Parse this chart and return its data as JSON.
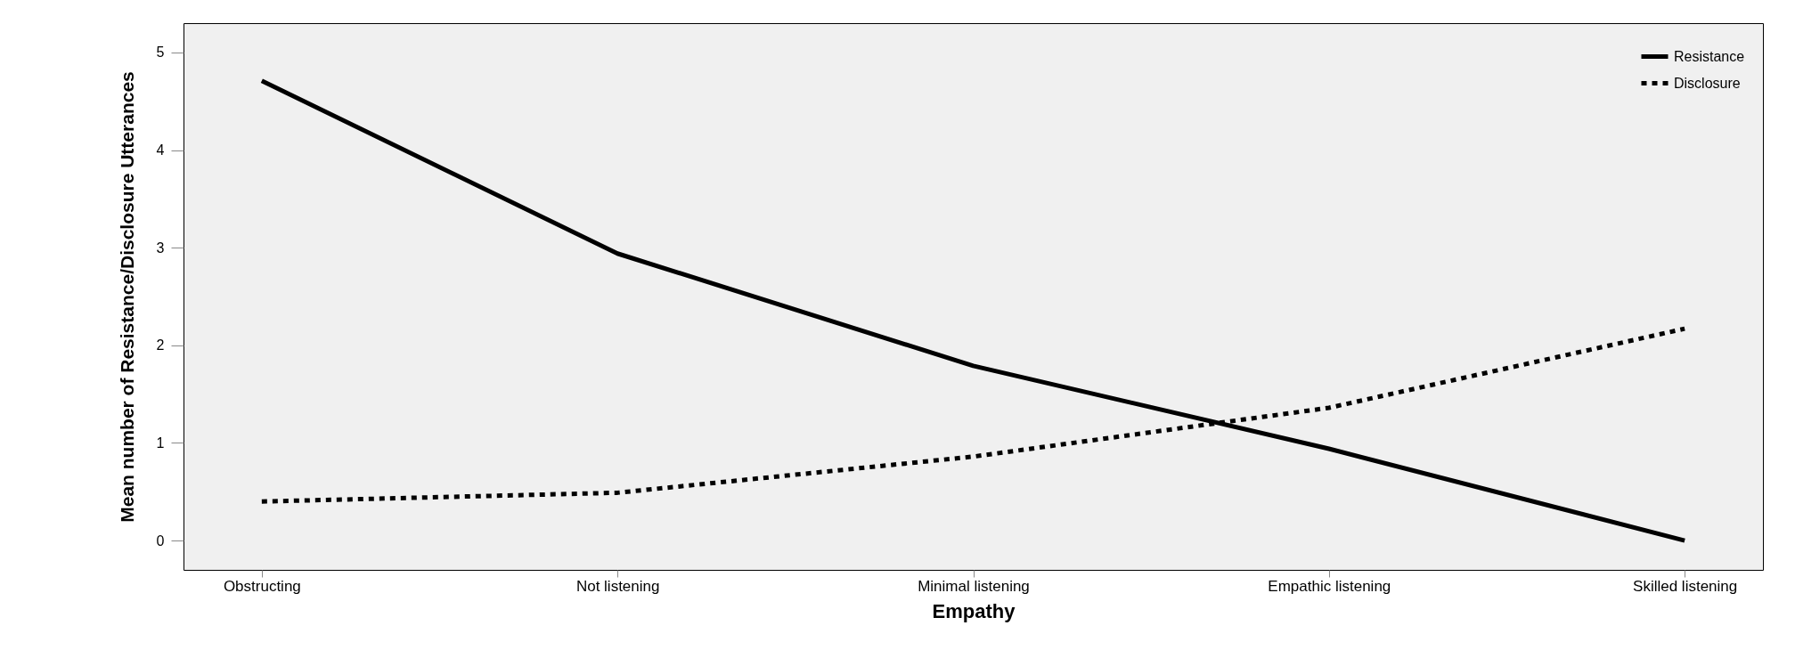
{
  "chart_data": {
    "type": "line",
    "xlabel": "Empathy",
    "ylabel": "Mean number of Resistance/Disclosure Utterances",
    "categories": [
      "Obstructing",
      "Not listening",
      "Minimal listening",
      "Empathic listening",
      "Skilled listening"
    ],
    "series": [
      {
        "name": "Resistance",
        "color": "#000000",
        "line_style": "solid",
        "values": [
          4.71,
          2.94,
          1.79,
          0.94,
          0.0
        ]
      },
      {
        "name": "Disclosure",
        "color": "#000000",
        "line_style": "dotted",
        "values": [
          0.4,
          0.49,
          0.86,
          1.36,
          2.17
        ]
      }
    ],
    "ylim": [
      -0.3,
      5.3
    ],
    "yticks": [
      0,
      1,
      2,
      3,
      4,
      5
    ],
    "grid": false,
    "legend": "top right",
    "marker": "none"
  }
}
